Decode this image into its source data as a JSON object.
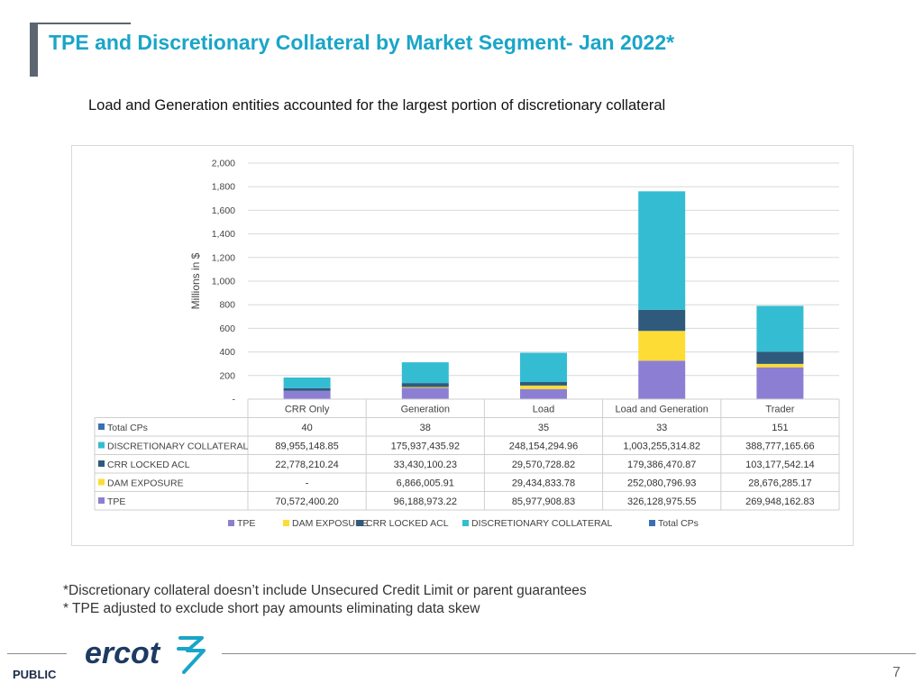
{
  "page": {
    "title": "TPE and Discretionary Collateral by Market Segment- Jan 2022*",
    "subtitle": "Load and Generation entities accounted for the largest portion of discretionary collateral",
    "footnote1": "*Discretionary collateral doesn’t include Unsecured Credit Limit or parent guarantees",
    "footnote2": "* TPE adjusted to exclude short pay amounts eliminating data skew",
    "footer_label": "PUBLIC",
    "page_number": "7",
    "logo_text": "ercot"
  },
  "colors": {
    "title": "#1aa5c8",
    "tpe": "#8c7fd3",
    "dam": "#fddc35",
    "crr": "#2f5a7c",
    "disc": "#34bdd2",
    "total_cps": "#3a6fb5",
    "logo": "#1e3a63"
  },
  "chart_data": {
    "type": "bar",
    "stacked": true,
    "ylabel": "Millions in $",
    "ylim": [
      0,
      2000
    ],
    "yticks": [
      "-",
      "200",
      "400",
      "600",
      "800",
      "1,000",
      "1,200",
      "1,400",
      "1,600",
      "1,800",
      "2,000"
    ],
    "ytick_values": [
      0,
      200,
      400,
      600,
      800,
      1000,
      1200,
      1400,
      1600,
      1800,
      2000
    ],
    "categories": [
      "CRR Only",
      "Generation",
      "Load",
      "Load and Generation",
      "Trader"
    ],
    "series": [
      {
        "name": "TPE",
        "color_key": "tpe",
        "values": [
          70.57,
          96.19,
          85.98,
          326.13,
          269.95
        ],
        "labels": [
          "70,572,400.20",
          "96,188,973.22",
          "85,977,908.83",
          "326,128,975.55",
          "269,948,162.83"
        ]
      },
      {
        "name": "DAM  EXPOSURE",
        "color_key": "dam",
        "values": [
          0,
          6.87,
          29.43,
          252.08,
          28.68
        ],
        "labels": [
          "-",
          "6,866,005.91",
          "29,434,833.78",
          "252,080,796.93",
          "28,676,285.17"
        ]
      },
      {
        "name": "CRR LOCKED ACL",
        "color_key": "crr",
        "values": [
          22.78,
          33.43,
          29.57,
          179.39,
          103.18
        ],
        "labels": [
          "22,778,210.24",
          "33,430,100.23",
          "29,570,728.82",
          "179,386,470.87",
          "103,177,542.14"
        ]
      },
      {
        "name": "DISCRETIONARY COLLATERAL",
        "color_key": "disc",
        "values": [
          89.96,
          175.94,
          248.15,
          1003.26,
          388.78
        ],
        "labels": [
          "89,955,148.85",
          "175,937,435.92",
          "248,154,294.96",
          "1,003,255,314.82",
          "388,777,165.66"
        ]
      }
    ],
    "total_cps": {
      "name": "Total CPs",
      "color_key": "total_cps",
      "labels": [
        "40",
        "38",
        "35",
        "33",
        "151"
      ]
    },
    "table_row_order": [
      "Total CPs",
      "DISCRETIONARY COLLATERAL",
      "CRR LOCKED ACL",
      "DAM  EXPOSURE",
      "TPE"
    ],
    "legend_order": [
      "TPE",
      "DAM  EXPOSURE",
      "CRR LOCKED ACL",
      "DISCRETIONARY COLLATERAL",
      "Total CPs"
    ],
    "legend_position": "bottom"
  }
}
